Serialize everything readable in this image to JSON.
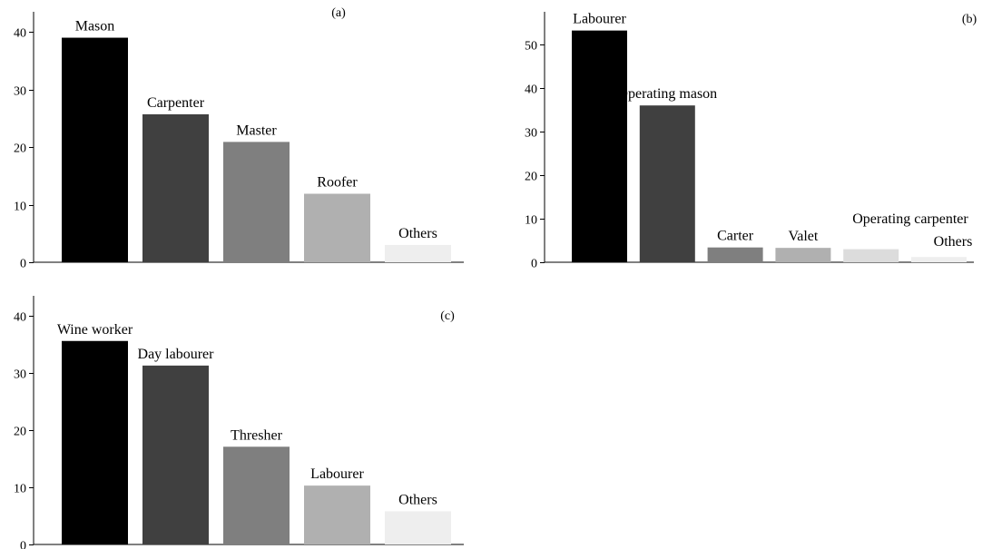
{
  "chart_data": [
    {
      "type": "bar",
      "panel_label": "(a)",
      "categories": [
        "Mason",
        "Carpenter",
        "Master",
        "Roofer",
        "Others"
      ],
      "values": [
        39,
        25.7,
        20.9,
        11.9,
        3
      ],
      "bar_colors": [
        "#000000",
        "#404040",
        "#7f7f7f",
        "#b0b0b0",
        "#eeeeee"
      ],
      "yticks": [
        0,
        10,
        20,
        30,
        40
      ],
      "ylim": [
        0,
        43.5
      ],
      "grid": false,
      "title": "",
      "xlabel": "",
      "ylabel": ""
    },
    {
      "type": "bar",
      "panel_label": "(b)",
      "categories": [
        "Labourer",
        "Operating mason",
        "Carter",
        "Valet",
        "Operating carpenter",
        "Others"
      ],
      "values": [
        53.2,
        36,
        3.4,
        3.3,
        3,
        1.2
      ],
      "bar_colors": [
        "#000000",
        "#404040",
        "#7f7f7f",
        "#b0b0b0",
        "#dcdcdc",
        "#eeeeee"
      ],
      "yticks": [
        0,
        10,
        20,
        30,
        40,
        50
      ],
      "ylim": [
        0,
        57.5
      ],
      "grid": false,
      "title": "",
      "xlabel": "",
      "ylabel": ""
    },
    {
      "type": "bar",
      "panel_label": "(c)",
      "categories": [
        "Wine worker",
        "Day labourer",
        "Thresher",
        "Labourer",
        "Others"
      ],
      "values": [
        35.6,
        31.3,
        17.1,
        10.3,
        5.8
      ],
      "bar_colors": [
        "#000000",
        "#404040",
        "#7f7f7f",
        "#b0b0b0",
        "#eeeeee"
      ],
      "yticks": [
        0,
        10,
        20,
        30,
        40
      ],
      "ylim": [
        0,
        43.5
      ],
      "grid": false,
      "title": "",
      "xlabel": "",
      "ylabel": ""
    }
  ]
}
